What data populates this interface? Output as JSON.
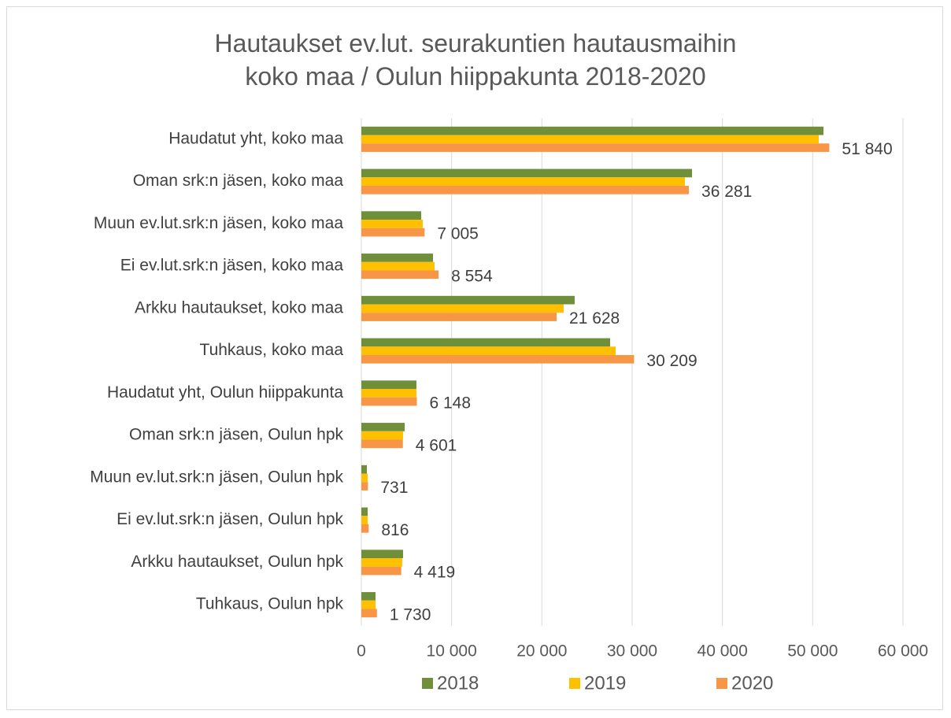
{
  "chart_data": {
    "type": "bar",
    "orientation": "horizontal",
    "title": "Hautaukset ev.lut. seurakuntien hautausmaihin\nkoko maa / Oulun hiippakunta 2018-2020",
    "categories": [
      "Haudatut yht, koko maa",
      "Oman srk:n jäsen, koko maa",
      "Muun ev.lut.srk:n jäsen, koko maa",
      "Ei ev.lut.srk:n jäsen, koko maa",
      "Arkku hautaukset, koko maa",
      "Tuhkaus, koko maa",
      "Haudatut yht, Oulun hiippakunta",
      "Oman srk:n jäsen, Oulun hpk",
      "Muun ev.lut.srk:n jäsen, Oulun hpk",
      "Ei ev.lut.srk:n jäsen, Oulun hpk",
      "Arkku hautaukset, Oulun hpk",
      "Tuhkaus, Oulun hpk"
    ],
    "series": [
      {
        "name": "2018",
        "color": "#6f8f3a",
        "values": [
          51190,
          36630,
          6630,
          7940,
          23630,
          27560,
          6100,
          4800,
          610,
          700,
          4620,
          1570
        ]
      },
      {
        "name": "2019",
        "color": "#ffc000",
        "values": [
          50670,
          35840,
          6800,
          8110,
          22410,
          28170,
          6100,
          4620,
          700,
          700,
          4530,
          1570
        ]
      },
      {
        "name": "2020",
        "color": "#f79646",
        "values": [
          51840,
          36281,
          7005,
          8554,
          21628,
          30209,
          6148,
          4601,
          731,
          816,
          4419,
          1730
        ],
        "value_labels": [
          "51 840",
          "36 281",
          "7 005",
          "8 554",
          "21 628",
          "30 209",
          "6 148",
          "4 601",
          "731",
          "816",
          "4 419",
          "1 730"
        ]
      }
    ],
    "xlim": [
      0,
      60000
    ],
    "xticks": [
      0,
      {
        "value": 10000,
        "label": "10 000"
      },
      {
        "value": 20000,
        "label": "20 000"
      },
      {
        "value": 30000,
        "label": "30 000"
      },
      {
        "value": 40000,
        "label": "40 000"
      },
      {
        "value": 50000,
        "label": "50 000"
      },
      {
        "value": 60000,
        "label": "60 000"
      }
    ],
    "grid": true,
    "legend": "bottom"
  }
}
